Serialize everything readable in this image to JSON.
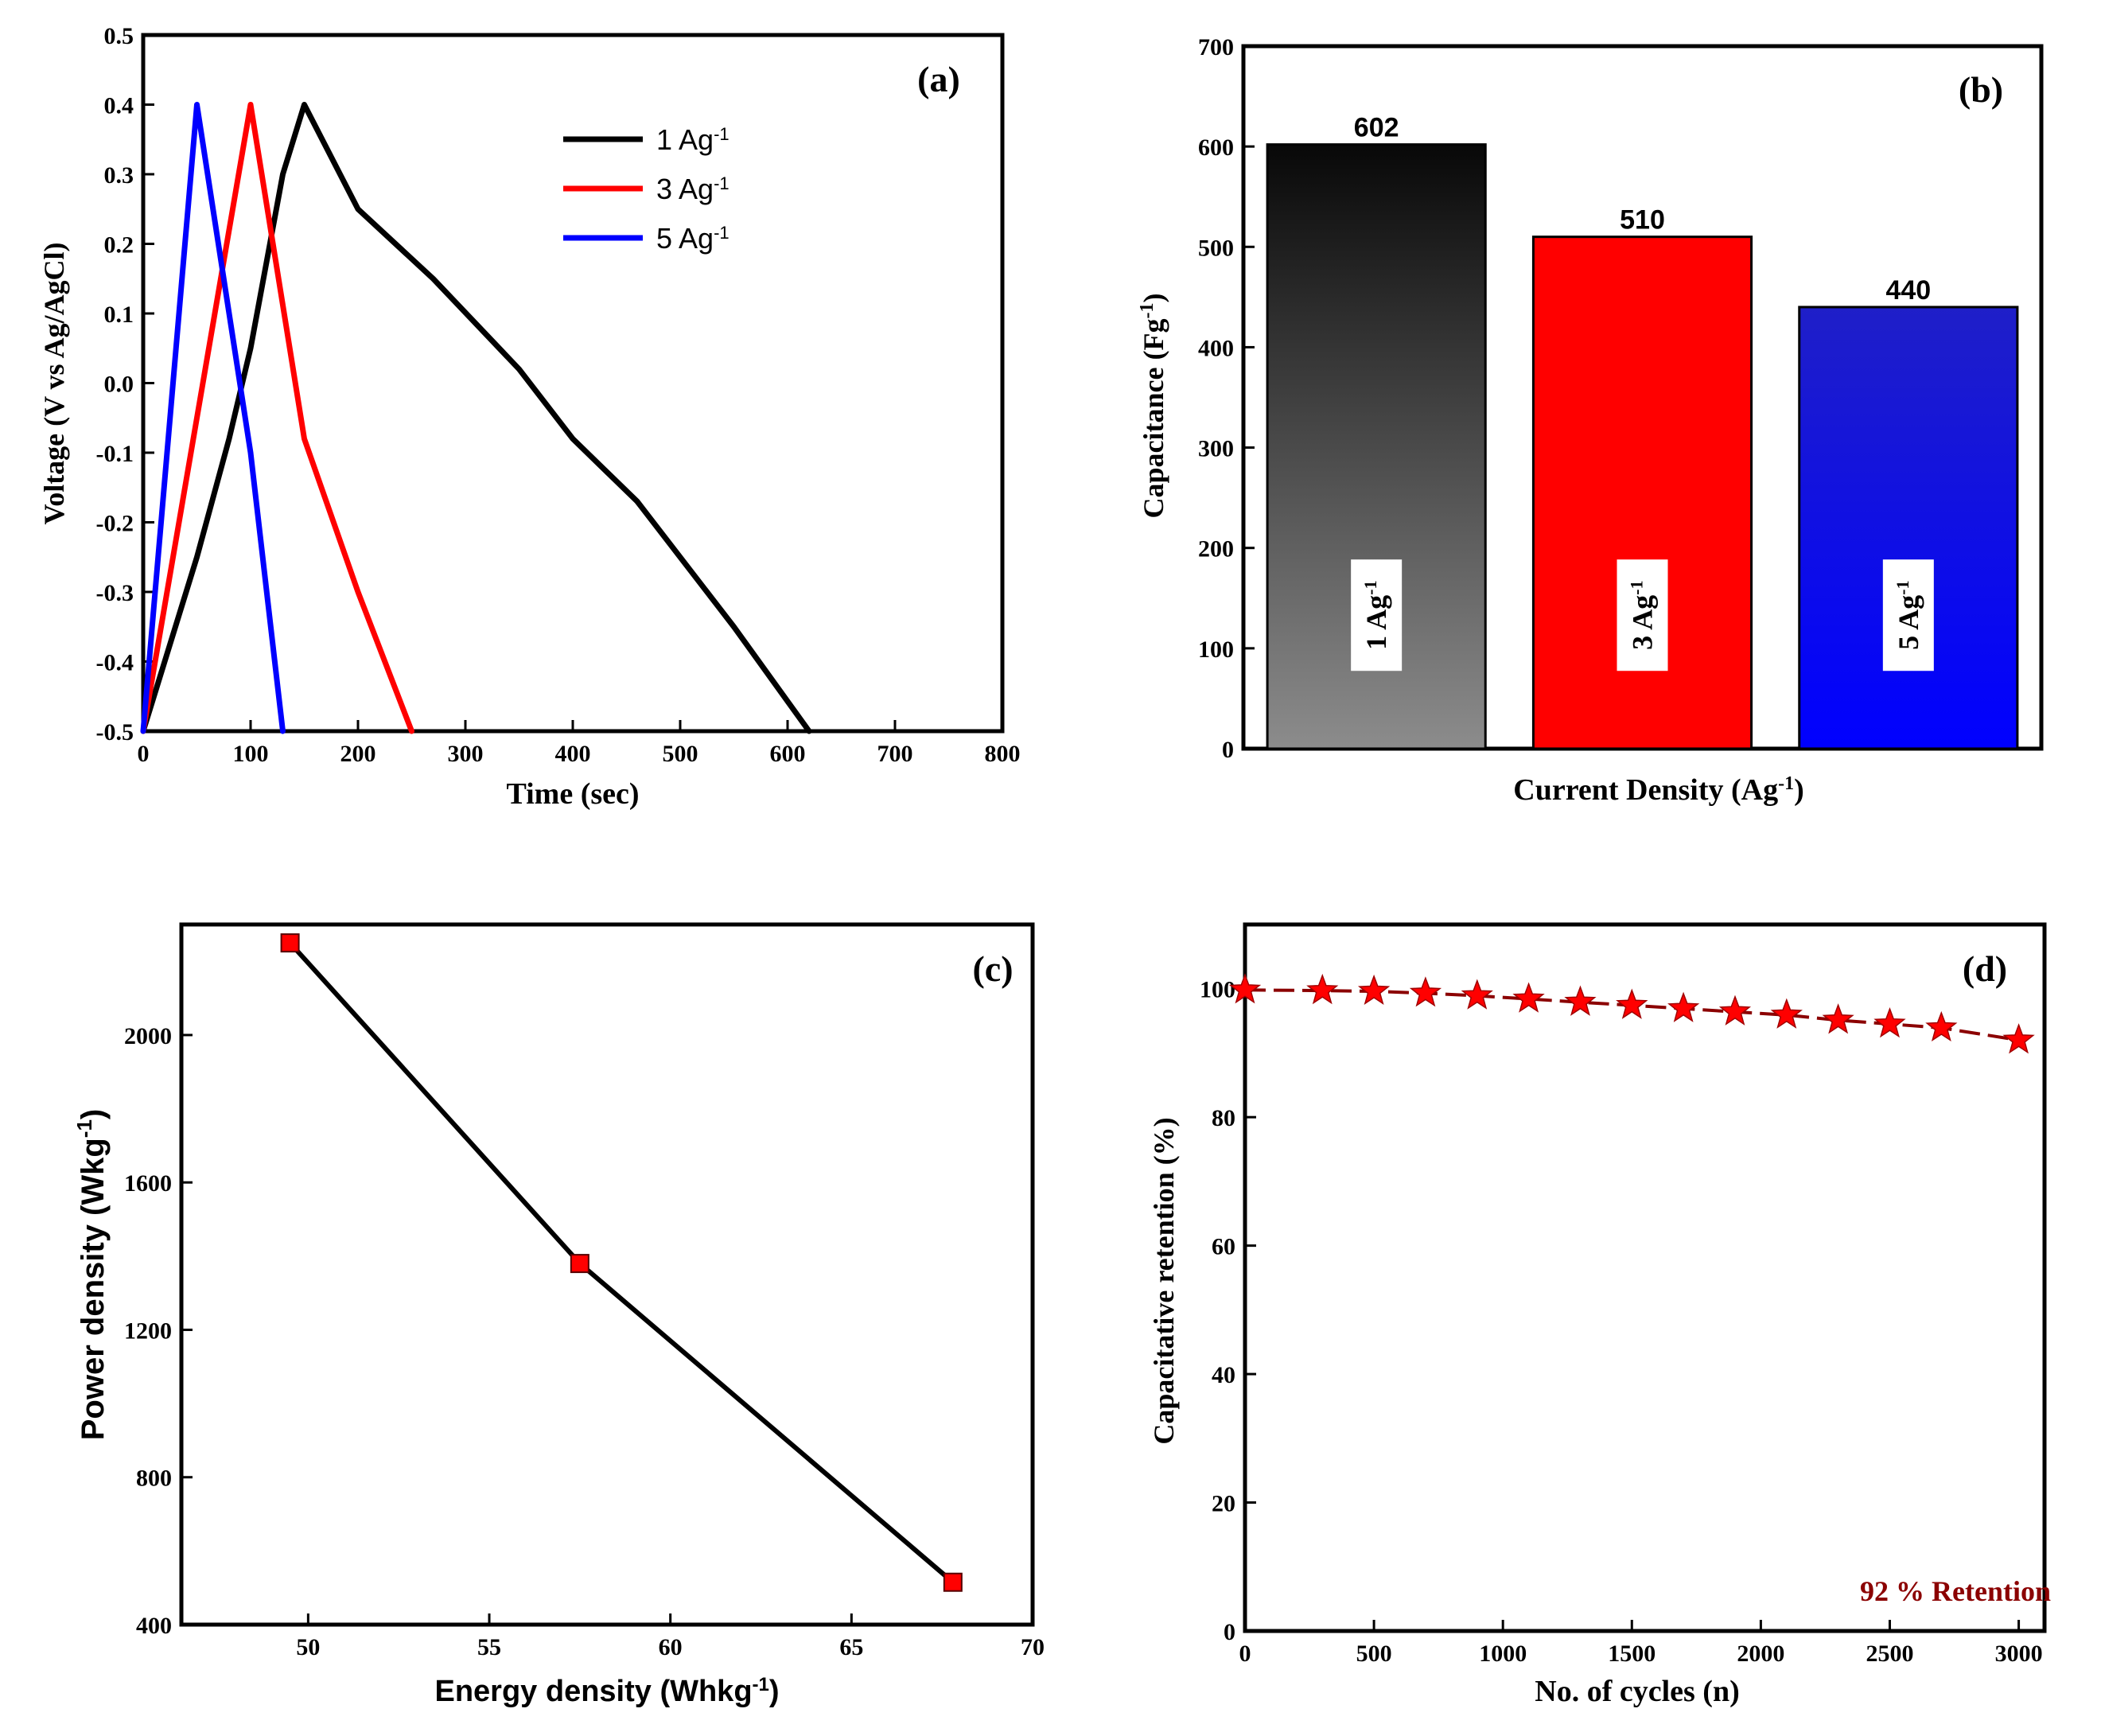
{
  "chart_data": [
    {
      "panel": "(a)",
      "type": "line",
      "title": "",
      "xlabel": "Time (sec)",
      "ylabel": "Voltage (V vs Ag/AgCl)",
      "xlim": [
        0,
        800
      ],
      "ylim": [
        -0.5,
        0.5
      ],
      "xticks": [
        "0",
        "100",
        "200",
        "300",
        "400",
        "500",
        "600",
        "700",
        "800"
      ],
      "yticks": [
        "-0.5",
        "-0.4",
        "-0.3",
        "-0.2",
        "-0.1",
        "0.0",
        "0.1",
        "0.2",
        "0.3",
        "0.4",
        "0.5"
      ],
      "legend_position": "top-right",
      "series": [
        {
          "name": "1 Ag",
          "sup": "-1",
          "color": "#000000",
          "points": [
            [
              0,
              -0.5
            ],
            [
              50,
              -0.25
            ],
            [
              80,
              -0.08
            ],
            [
              100,
              0.05
            ],
            [
              130,
              0.3
            ],
            [
              150,
              0.4
            ],
            [
              200,
              0.25
            ],
            [
              270,
              0.15
            ],
            [
              350,
              0.02
            ],
            [
              400,
              -0.08
            ],
            [
              460,
              -0.17
            ],
            [
              550,
              -0.35
            ],
            [
              620,
              -0.5
            ]
          ]
        },
        {
          "name": "3 Ag",
          "sup": "-1",
          "color": "#ff0000",
          "points": [
            [
              0,
              -0.5
            ],
            [
              50,
              -0.05
            ],
            [
              100,
              0.4
            ],
            [
              150,
              -0.08
            ],
            [
              200,
              -0.3
            ],
            [
              250,
              -0.5
            ]
          ]
        },
        {
          "name": "5 Ag",
          "sup": "-1",
          "color": "#0000ff",
          "points": [
            [
              0,
              -0.5
            ],
            [
              50,
              0.4
            ],
            [
              100,
              -0.1
            ],
            [
              130,
              -0.5
            ]
          ]
        }
      ]
    },
    {
      "panel": "(b)",
      "type": "bar",
      "title": "",
      "xlabel": "Current Density (Ag",
      "xlabel_sup": "-1",
      "xlabel_tail": ")",
      "ylabel": "Capacitance (Fg",
      "ylabel_sup": "-1",
      "ylabel_tail": ")",
      "ylim": [
        0,
        700
      ],
      "yticks": [
        "0",
        "100",
        "200",
        "300",
        "400",
        "500",
        "600",
        "700"
      ],
      "categories": [
        "1 Ag",
        "3 Ag",
        "5 Ag"
      ],
      "category_sup": "-1",
      "values": [
        602,
        510,
        440
      ],
      "value_labels": [
        "602",
        "510",
        "440"
      ],
      "colors": [
        "#000000",
        "#ff0000",
        "#0000ff"
      ]
    },
    {
      "panel": "(c)",
      "type": "line",
      "title": "",
      "xlabel": "Energy density (Whkg",
      "xlabel_sup": "-1",
      "xlabel_tail": ")",
      "ylabel": "Power density (Wkg",
      "ylabel_sup": "-1",
      "ylabel_tail": ")",
      "xlim": [
        46.5,
        70
      ],
      "ylim": [
        400,
        2300
      ],
      "xticks": [
        50,
        55,
        60,
        65,
        70
      ],
      "yticks": [
        400,
        800,
        1200,
        1600,
        2000
      ],
      "x": [
        49.5,
        57.5,
        67.8
      ],
      "y": [
        2250,
        1380,
        515
      ],
      "marker": "square",
      "marker_color": "#ff0000",
      "line_color": "#000000"
    },
    {
      "panel": "(d)",
      "type": "line",
      "title": "",
      "xlabel": "No. of cycles (n)",
      "ylabel": "Capacitative retention (%)",
      "xlim": [
        0,
        3100
      ],
      "ylim": [
        0,
        110
      ],
      "xticks": [
        0,
        500,
        1000,
        1500,
        2000,
        2500,
        3000
      ],
      "yticks": [
        0,
        20,
        40,
        60,
        80,
        100
      ],
      "x": [
        0,
        300,
        500,
        700,
        900,
        1100,
        1300,
        1500,
        1700,
        1900,
        2100,
        2300,
        2500,
        2700,
        3000
      ],
      "y": [
        99.8,
        99.7,
        99.6,
        99.3,
        98.9,
        98.4,
        97.9,
        97.4,
        96.9,
        96.4,
        95.9,
        95.1,
        94.5,
        93.9,
        92.0
      ],
      "marker": "star",
      "color": "#ff0000",
      "line_color": "#8b0000",
      "annotation": "92 % Retention",
      "annotation_color": "#8b0000"
    }
  ]
}
